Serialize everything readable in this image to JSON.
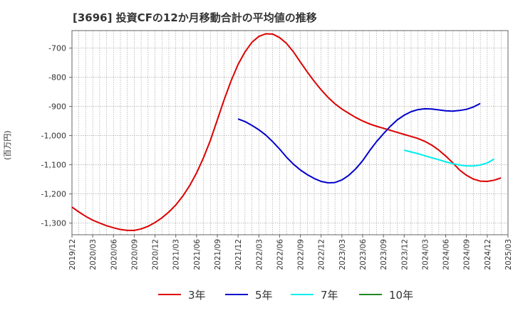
{
  "chart_data": {
    "type": "line",
    "title": "[3696]  投資CFの12か月移動合計の平均値の推移",
    "ylabel": "(百万円)",
    "ylim": [
      -1340,
      -640
    ],
    "yticks": [
      -700,
      -800,
      -900,
      -1000,
      -1100,
      -1200,
      -1300
    ],
    "ytick_labels": [
      "-700",
      "-800",
      "-900",
      "-1,000",
      "-1,100",
      "-1,200",
      "-1,300"
    ],
    "xticks": [
      "2019/12",
      "2020/03",
      "2020/06",
      "2020/09",
      "2020/12",
      "2021/03",
      "2021/06",
      "2021/09",
      "2021/12",
      "2022/03",
      "2022/06",
      "2022/09",
      "2022/12",
      "2023/03",
      "2023/06",
      "2023/09",
      "2023/12",
      "2024/03",
      "2024/06",
      "2024/09",
      "2024/12",
      "2025/03"
    ],
    "grid": true,
    "legend_position": "bottom",
    "series": [
      {
        "name": "3年",
        "color": "#dd0000",
        "values": [
          -1245,
          -1262,
          -1277,
          -1290,
          -1300,
          -1309,
          -1316,
          -1322,
          -1325,
          -1325,
          -1320,
          -1311,
          -1298,
          -1282,
          -1262,
          -1238,
          -1208,
          -1172,
          -1128,
          -1076,
          -1016,
          -946,
          -876,
          -812,
          -756,
          -713,
          -680,
          -660,
          -651,
          -652,
          -664,
          -684,
          -713,
          -748,
          -782,
          -814,
          -843,
          -869,
          -891,
          -909,
          -924,
          -938,
          -950,
          -960,
          -968,
          -975,
          -982,
          -989,
          -996,
          -1003,
          -1010,
          -1020,
          -1033,
          -1050,
          -1070,
          -1093,
          -1118,
          -1136,
          -1149,
          -1156,
          -1157,
          -1153,
          -1145
        ]
      },
      {
        "name": "5年",
        "color": "#0000cc",
        "values": [
          null,
          null,
          null,
          null,
          null,
          null,
          null,
          null,
          null,
          null,
          null,
          null,
          null,
          null,
          null,
          null,
          null,
          null,
          null,
          null,
          null,
          null,
          null,
          null,
          -943,
          -952,
          -965,
          -980,
          -998,
          -1021,
          -1046,
          -1074,
          -1098,
          -1118,
          -1134,
          -1147,
          -1157,
          -1162,
          -1161,
          -1152,
          -1136,
          -1114,
          -1086,
          -1052,
          -1021,
          -994,
          -968,
          -946,
          -930,
          -918,
          -911,
          -908,
          -909,
          -912,
          -915,
          -916,
          -914,
          -910,
          -902,
          -890
        ]
      },
      {
        "name": "7年",
        "color": "#00eeee",
        "values": [
          null,
          null,
          null,
          null,
          null,
          null,
          null,
          null,
          null,
          null,
          null,
          null,
          null,
          null,
          null,
          null,
          null,
          null,
          null,
          null,
          null,
          null,
          null,
          null,
          null,
          null,
          null,
          null,
          null,
          null,
          null,
          null,
          null,
          null,
          null,
          null,
          null,
          null,
          null,
          null,
          null,
          null,
          null,
          null,
          null,
          null,
          null,
          null,
          -1050,
          -1056,
          -1062,
          -1069,
          -1076,
          -1083,
          -1090,
          -1096,
          -1101,
          -1104,
          -1104,
          -1101,
          -1094,
          -1080
        ]
      },
      {
        "name": "10年",
        "color": "#228822",
        "values": []
      }
    ]
  }
}
